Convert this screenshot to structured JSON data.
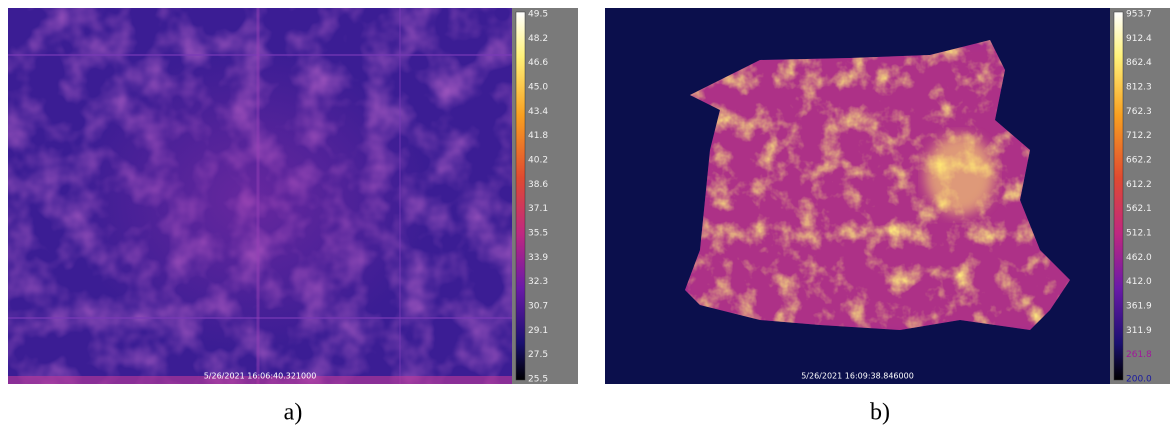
{
  "panels": [
    {
      "timestamp": "5/26/2021 16:06:40.321000",
      "scale": [
        "49.5",
        "48.2",
        "46.6",
        "45.0",
        "43.4",
        "41.8",
        "40.2",
        "38.6",
        "37.1",
        "35.5",
        "33.9",
        "32.3",
        "30.7",
        "29.1",
        "27.5",
        "25.5"
      ],
      "caption": "a)"
    },
    {
      "timestamp": "5/26/2021 16:09:38.846000",
      "scale": [
        "953.7",
        "912.4",
        "862.4",
        "812.3",
        "762.3",
        "712.2",
        "662.2",
        "612.2",
        "562.1",
        "512.1",
        "462.0",
        "412.0",
        "361.9",
        "311.9",
        "261.8",
        "200.0"
      ],
      "caption": "b)"
    }
  ]
}
